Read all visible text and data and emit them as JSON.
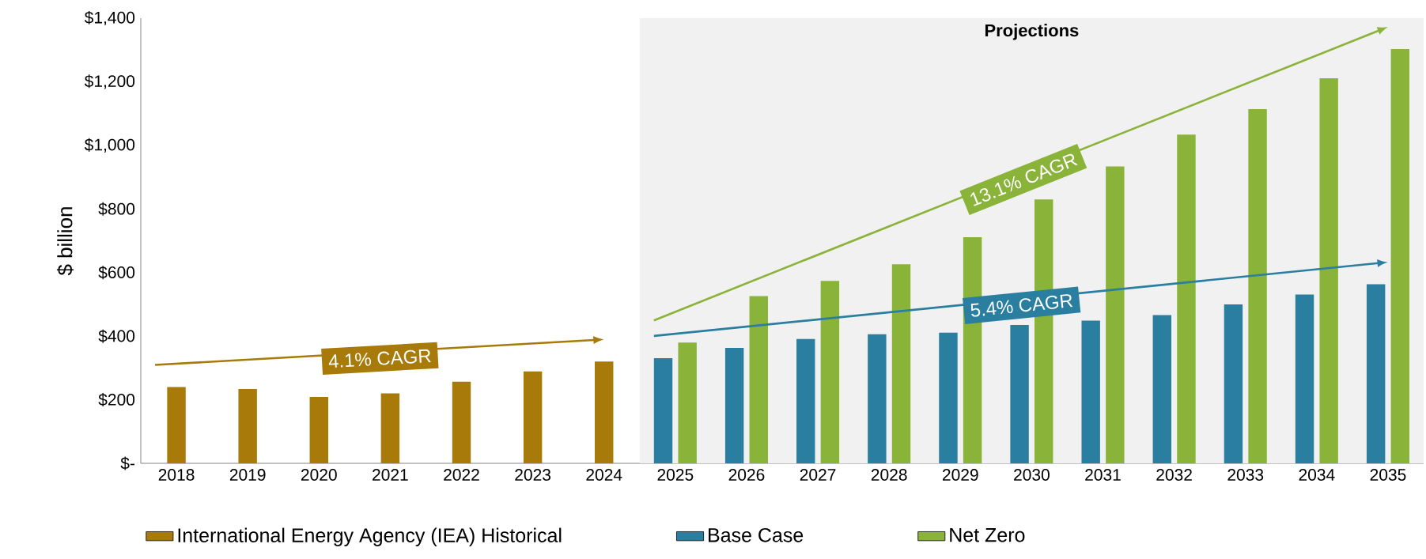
{
  "chart_data": {
    "type": "bar",
    "ylabel": "$ billion",
    "categories": [
      "2018",
      "2019",
      "2020",
      "2021",
      "2022",
      "2023",
      "2024",
      "2025",
      "2026",
      "2027",
      "2028",
      "2029",
      "2030",
      "2031",
      "2032",
      "2033",
      "2034",
      "2035"
    ],
    "series": [
      {
        "name": "International Energy Agency (IEA) Historical",
        "color": "#a87a0a",
        "values": [
          240,
          234,
          209,
          220,
          257,
          289,
          320,
          null,
          null,
          null,
          null,
          null,
          null,
          null,
          null,
          null,
          null,
          null
        ]
      },
      {
        "name": "Base Case",
        "color": "#2a7ea0",
        "values": [
          null,
          null,
          null,
          null,
          null,
          null,
          null,
          331,
          363,
          391,
          406,
          411,
          435,
          449,
          466,
          500,
          531,
          563
        ]
      },
      {
        "name": "Net Zero",
        "color": "#8ab33a",
        "values": [
          null,
          null,
          null,
          null,
          null,
          null,
          null,
          380,
          526,
          574,
          626,
          711,
          830,
          934,
          1034,
          1114,
          1211,
          1303
        ]
      }
    ],
    "ylim": [
      0,
      1400
    ],
    "yticks": [
      {
        "value": 0,
        "label": "$-"
      },
      {
        "value": 200,
        "label": "$200"
      },
      {
        "value": 400,
        "label": "$400"
      },
      {
        "value": 600,
        "label": "$600"
      },
      {
        "value": 800,
        "label": "$800"
      },
      {
        "value": 1000,
        "label": "$1,000"
      },
      {
        "value": 1200,
        "label": "$1,200"
      },
      {
        "value": 1400,
        "label": "$1,400"
      }
    ],
    "annotations": [
      "4.1% CAGR",
      "5.4% CAGR",
      "13.1% CAGR"
    ],
    "bands": [
      {
        "axis": "x",
        "from": "2025",
        "to": "2035",
        "label": "Projections",
        "color": "#f1f1f1"
      }
    ],
    "legend": "bottom",
    "grid": false
  }
}
